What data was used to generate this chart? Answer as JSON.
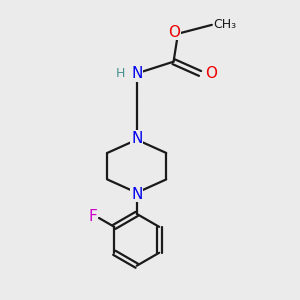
{
  "bg_color": "#ebebeb",
  "bond_color": "#1a1a1a",
  "bond_width": 1.6,
  "atom_colors": {
    "N": "#0000ee",
    "O": "#ee0000",
    "F": "#cc00cc",
    "H_label": "#4a9090",
    "C": "#1a1a1a"
  },
  "font_size_atoms": 11,
  "font_size_small": 9,
  "xlim": [
    0,
    10
  ],
  "ylim": [
    0,
    10
  ]
}
